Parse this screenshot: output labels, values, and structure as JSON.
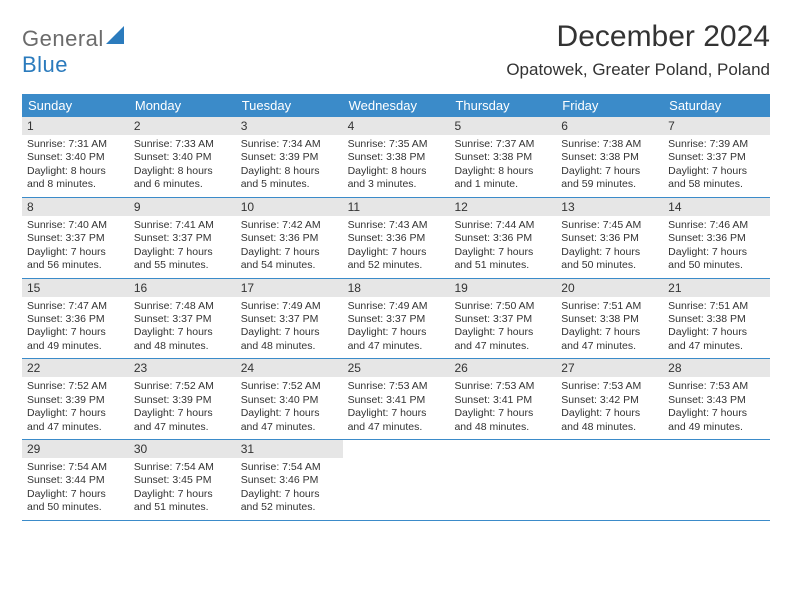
{
  "logo": {
    "text1": "General",
    "text2": "Blue",
    "shape_color": "#2b7bbd"
  },
  "title": "December 2024",
  "subtitle": "Opatowek, Greater Poland, Poland",
  "colors": {
    "header_bg": "#3b8bc9",
    "header_text": "#ffffff",
    "date_strip_bg": "#e6e6e6",
    "week_border": "#3b8bc9",
    "text": "#333333",
    "background": "#ffffff"
  },
  "typography": {
    "title_fontsize": 30,
    "subtitle_fontsize": 17,
    "day_header_fontsize": 13,
    "date_fontsize": 12,
    "body_fontsize": 10.5
  },
  "day_headers": [
    "Sunday",
    "Monday",
    "Tuesday",
    "Wednesday",
    "Thursday",
    "Friday",
    "Saturday"
  ],
  "weeks": [
    [
      {
        "date": "1",
        "sunrise": "Sunrise: 7:31 AM",
        "sunset": "Sunset: 3:40 PM",
        "daylight": "Daylight: 8 hours and 8 minutes."
      },
      {
        "date": "2",
        "sunrise": "Sunrise: 7:33 AM",
        "sunset": "Sunset: 3:40 PM",
        "daylight": "Daylight: 8 hours and 6 minutes."
      },
      {
        "date": "3",
        "sunrise": "Sunrise: 7:34 AM",
        "sunset": "Sunset: 3:39 PM",
        "daylight": "Daylight: 8 hours and 5 minutes."
      },
      {
        "date": "4",
        "sunrise": "Sunrise: 7:35 AM",
        "sunset": "Sunset: 3:38 PM",
        "daylight": "Daylight: 8 hours and 3 minutes."
      },
      {
        "date": "5",
        "sunrise": "Sunrise: 7:37 AM",
        "sunset": "Sunset: 3:38 PM",
        "daylight": "Daylight: 8 hours and 1 minute."
      },
      {
        "date": "6",
        "sunrise": "Sunrise: 7:38 AM",
        "sunset": "Sunset: 3:38 PM",
        "daylight": "Daylight: 7 hours and 59 minutes."
      },
      {
        "date": "7",
        "sunrise": "Sunrise: 7:39 AM",
        "sunset": "Sunset: 3:37 PM",
        "daylight": "Daylight: 7 hours and 58 minutes."
      }
    ],
    [
      {
        "date": "8",
        "sunrise": "Sunrise: 7:40 AM",
        "sunset": "Sunset: 3:37 PM",
        "daylight": "Daylight: 7 hours and 56 minutes."
      },
      {
        "date": "9",
        "sunrise": "Sunrise: 7:41 AM",
        "sunset": "Sunset: 3:37 PM",
        "daylight": "Daylight: 7 hours and 55 minutes."
      },
      {
        "date": "10",
        "sunrise": "Sunrise: 7:42 AM",
        "sunset": "Sunset: 3:36 PM",
        "daylight": "Daylight: 7 hours and 54 minutes."
      },
      {
        "date": "11",
        "sunrise": "Sunrise: 7:43 AM",
        "sunset": "Sunset: 3:36 PM",
        "daylight": "Daylight: 7 hours and 52 minutes."
      },
      {
        "date": "12",
        "sunrise": "Sunrise: 7:44 AM",
        "sunset": "Sunset: 3:36 PM",
        "daylight": "Daylight: 7 hours and 51 minutes."
      },
      {
        "date": "13",
        "sunrise": "Sunrise: 7:45 AM",
        "sunset": "Sunset: 3:36 PM",
        "daylight": "Daylight: 7 hours and 50 minutes."
      },
      {
        "date": "14",
        "sunrise": "Sunrise: 7:46 AM",
        "sunset": "Sunset: 3:36 PM",
        "daylight": "Daylight: 7 hours and 50 minutes."
      }
    ],
    [
      {
        "date": "15",
        "sunrise": "Sunrise: 7:47 AM",
        "sunset": "Sunset: 3:36 PM",
        "daylight": "Daylight: 7 hours and 49 minutes."
      },
      {
        "date": "16",
        "sunrise": "Sunrise: 7:48 AM",
        "sunset": "Sunset: 3:37 PM",
        "daylight": "Daylight: 7 hours and 48 minutes."
      },
      {
        "date": "17",
        "sunrise": "Sunrise: 7:49 AM",
        "sunset": "Sunset: 3:37 PM",
        "daylight": "Daylight: 7 hours and 48 minutes."
      },
      {
        "date": "18",
        "sunrise": "Sunrise: 7:49 AM",
        "sunset": "Sunset: 3:37 PM",
        "daylight": "Daylight: 7 hours and 47 minutes."
      },
      {
        "date": "19",
        "sunrise": "Sunrise: 7:50 AM",
        "sunset": "Sunset: 3:37 PM",
        "daylight": "Daylight: 7 hours and 47 minutes."
      },
      {
        "date": "20",
        "sunrise": "Sunrise: 7:51 AM",
        "sunset": "Sunset: 3:38 PM",
        "daylight": "Daylight: 7 hours and 47 minutes."
      },
      {
        "date": "21",
        "sunrise": "Sunrise: 7:51 AM",
        "sunset": "Sunset: 3:38 PM",
        "daylight": "Daylight: 7 hours and 47 minutes."
      }
    ],
    [
      {
        "date": "22",
        "sunrise": "Sunrise: 7:52 AM",
        "sunset": "Sunset: 3:39 PM",
        "daylight": "Daylight: 7 hours and 47 minutes."
      },
      {
        "date": "23",
        "sunrise": "Sunrise: 7:52 AM",
        "sunset": "Sunset: 3:39 PM",
        "daylight": "Daylight: 7 hours and 47 minutes."
      },
      {
        "date": "24",
        "sunrise": "Sunrise: 7:52 AM",
        "sunset": "Sunset: 3:40 PM",
        "daylight": "Daylight: 7 hours and 47 minutes."
      },
      {
        "date": "25",
        "sunrise": "Sunrise: 7:53 AM",
        "sunset": "Sunset: 3:41 PM",
        "daylight": "Daylight: 7 hours and 47 minutes."
      },
      {
        "date": "26",
        "sunrise": "Sunrise: 7:53 AM",
        "sunset": "Sunset: 3:41 PM",
        "daylight": "Daylight: 7 hours and 48 minutes."
      },
      {
        "date": "27",
        "sunrise": "Sunrise: 7:53 AM",
        "sunset": "Sunset: 3:42 PM",
        "daylight": "Daylight: 7 hours and 48 minutes."
      },
      {
        "date": "28",
        "sunrise": "Sunrise: 7:53 AM",
        "sunset": "Sunset: 3:43 PM",
        "daylight": "Daylight: 7 hours and 49 minutes."
      }
    ],
    [
      {
        "date": "29",
        "sunrise": "Sunrise: 7:54 AM",
        "sunset": "Sunset: 3:44 PM",
        "daylight": "Daylight: 7 hours and 50 minutes."
      },
      {
        "date": "30",
        "sunrise": "Sunrise: 7:54 AM",
        "sunset": "Sunset: 3:45 PM",
        "daylight": "Daylight: 7 hours and 51 minutes."
      },
      {
        "date": "31",
        "sunrise": "Sunrise: 7:54 AM",
        "sunset": "Sunset: 3:46 PM",
        "daylight": "Daylight: 7 hours and 52 minutes."
      },
      null,
      null,
      null,
      null
    ]
  ]
}
